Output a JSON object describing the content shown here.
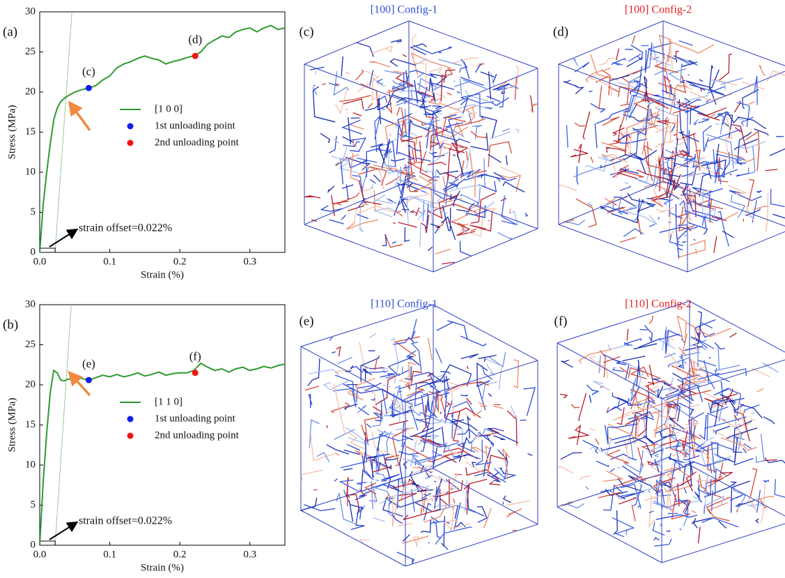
{
  "chart_data": [
    {
      "type": "line",
      "panel_label": "(a)",
      "xlabel": "Strain (%)",
      "ylabel": "Stress (MPa)",
      "xlim": [
        0,
        0.35
      ],
      "ylim": [
        0,
        30
      ],
      "xticks": [
        {
          "value": 0,
          "label": "0.0"
        },
        {
          "value": 0.1,
          "label": "0.1"
        },
        {
          "value": 0.2,
          "label": "0.2"
        },
        {
          "value": 0.3,
          "label": "0.3"
        }
      ],
      "yticks": [
        0,
        5,
        10,
        15,
        20,
        25,
        30
      ],
      "series": [
        {
          "name": "[1 0 0]",
          "color": "#2e9a2e",
          "mode": "line",
          "x": [
            0,
            0.005,
            0.01,
            0.015,
            0.02,
            0.025,
            0.03,
            0.035,
            0.04,
            0.05,
            0.06,
            0.07,
            0.08,
            0.09,
            0.1,
            0.11,
            0.12,
            0.13,
            0.14,
            0.15,
            0.16,
            0.17,
            0.18,
            0.19,
            0.2,
            0.21,
            0.22,
            0.23,
            0.24,
            0.25,
            0.26,
            0.27,
            0.28,
            0.29,
            0.3,
            0.31,
            0.32,
            0.33,
            0.34,
            0.35
          ],
          "values": [
            0,
            6,
            10,
            13.5,
            16.5,
            18,
            18.8,
            19.2,
            19.5,
            20,
            20.3,
            20.5,
            20.8,
            21.5,
            22,
            23,
            23.5,
            23.8,
            24.2,
            24.5,
            24.2,
            24,
            23.5,
            23.8,
            24,
            24.3,
            24.5,
            25,
            26,
            26.5,
            27,
            26.8,
            27.5,
            27.8,
            28,
            27.5,
            28,
            28.3,
            27.8,
            28
          ]
        },
        {
          "name": "1st unloading point",
          "color": "#1020e8",
          "mode": "markers",
          "x": [
            0.07
          ],
          "values": [
            20.5
          ],
          "point_label": "(c)"
        },
        {
          "name": "2nd unloading point",
          "color": "#f01515",
          "mode": "markers",
          "x": [
            0.222
          ],
          "values": [
            24.5
          ],
          "point_label": "(d)"
        }
      ],
      "offset_line": {
        "x": [
          0.022,
          0.046
        ],
        "values": [
          0,
          30
        ]
      },
      "annotation": "strain offset=0.022%"
    },
    {
      "type": "line",
      "panel_label": "(b)",
      "xlabel": "Strain (%)",
      "ylabel": "Stress (MPa)",
      "xlim": [
        0,
        0.35
      ],
      "ylim": [
        0,
        30
      ],
      "xticks": [
        {
          "value": 0,
          "label": "0.0"
        },
        {
          "value": 0.1,
          "label": "0.1"
        },
        {
          "value": 0.2,
          "label": "0.2"
        },
        {
          "value": 0.3,
          "label": "0.3"
        }
      ],
      "yticks": [
        0,
        5,
        10,
        15,
        20,
        25,
        30
      ],
      "series": [
        {
          "name": "[1 1 0]",
          "color": "#2e9a2e",
          "mode": "line",
          "x": [
            0,
            0.005,
            0.01,
            0.015,
            0.02,
            0.025,
            0.03,
            0.035,
            0.04,
            0.05,
            0.06,
            0.07,
            0.08,
            0.09,
            0.1,
            0.11,
            0.12,
            0.13,
            0.14,
            0.15,
            0.16,
            0.17,
            0.18,
            0.19,
            0.2,
            0.21,
            0.22,
            0.23,
            0.24,
            0.25,
            0.26,
            0.27,
            0.28,
            0.29,
            0.3,
            0.31,
            0.32,
            0.33,
            0.34,
            0.35
          ],
          "values": [
            0,
            8,
            14,
            19,
            21.8,
            21.5,
            20.6,
            20.5,
            20.7,
            20.8,
            20.8,
            20.6,
            20.9,
            21.2,
            21,
            21.3,
            21,
            21.2,
            21.5,
            21.1,
            21.3,
            21.6,
            21.2,
            21.4,
            21.5,
            21.5,
            21.8,
            22.7,
            22.2,
            21.8,
            22,
            21.6,
            22,
            22.2,
            21.8,
            22,
            22.3,
            22.1,
            22.4,
            22.6
          ]
        },
        {
          "name": "1st unloading point",
          "color": "#1020e8",
          "mode": "markers",
          "x": [
            0.07
          ],
          "values": [
            20.6
          ],
          "point_label": "(e)"
        },
        {
          "name": "2nd unloading point",
          "color": "#f01515",
          "mode": "markers",
          "x": [
            0.222
          ],
          "values": [
            21.5
          ],
          "point_label": "(f)"
        }
      ],
      "offset_line": {
        "x": [
          0.022,
          0.045
        ],
        "values": [
          0,
          30
        ]
      },
      "annotation": "strain offset=0.022%"
    }
  ],
  "panels": [
    {
      "label": "(c)",
      "title": "[100] Config-1",
      "title_color": "#2f4fd0"
    },
    {
      "label": "(d)",
      "title": "[100] Config-2",
      "title_color": "#e02020"
    },
    {
      "label": "(e)",
      "title": "[110] Config-1",
      "title_color": "#2f4fd0"
    },
    {
      "label": "(f)",
      "title": "[110] Config-2",
      "title_color": "#e02020"
    }
  ]
}
